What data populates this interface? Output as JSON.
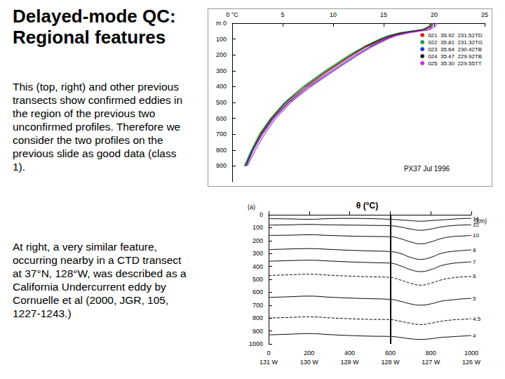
{
  "slide": {
    "title": "Delayed-mode QC: Regional features",
    "paragraphs": [
      "This (top, right) and other previous transects show confirmed eddies in the region of the previous two unconfirmed profiles. Therefore we consider the two profiles on the previous slide as good data (class 1).",
      "At right, a very similar feature, occurring nearby in a CTD transect at 37°N, 128°W, was described as a California Undercurrent eddy by Cornuelle et al (2000, JGR, 105, 1227-1243.)"
    ]
  },
  "chart_data": [
    {
      "type": "line",
      "annotation": "PX37 Jul 1996",
      "legend": "top-right",
      "y": [
        0,
        20,
        40,
        60,
        80,
        100,
        150,
        200,
        300,
        400,
        500,
        600,
        700,
        800,
        900
      ],
      "xlim": [
        0,
        25
      ],
      "xticks": [
        {
          "value": 0,
          "label": "0 °C"
        },
        5,
        10,
        15,
        20,
        25
      ],
      "ylim": [
        0,
        1000
      ],
      "yticks": [
        {
          "value": 0,
          "label": "m 0"
        },
        100,
        200,
        300,
        400,
        500,
        600,
        700,
        800,
        900
      ],
      "grid": false,
      "series": [
        {
          "name": "021  35.92  231.52TD",
          "color": "#e02020",
          "values": [
            19.8,
            19.7,
            19.2,
            17.0,
            15.8,
            15.0,
            13.3,
            12.0,
            9.6,
            7.4,
            5.5,
            4.0,
            2.9,
            2.0,
            1.3
          ]
        },
        {
          "name": "022  35.81  231.32TG",
          "color": "#20a040",
          "values": [
            19.6,
            19.5,
            18.8,
            16.6,
            15.4,
            14.6,
            13.0,
            11.6,
            9.2,
            7.0,
            5.2,
            3.8,
            2.7,
            1.9,
            1.2
          ]
        },
        {
          "name": "023  35.64  230.42TB",
          "color": "#2040d0",
          "values": [
            19.9,
            19.8,
            19.5,
            17.4,
            16.0,
            15.2,
            13.6,
            12.3,
            9.9,
            7.6,
            5.6,
            4.1,
            3.0,
            2.1,
            1.4
          ]
        },
        {
          "name": "024  35.47  229.92TB",
          "color": "#202020",
          "values": [
            19.7,
            19.6,
            19.0,
            16.8,
            15.6,
            14.8,
            13.1,
            11.8,
            9.4,
            7.2,
            5.3,
            3.9,
            2.8,
            2.0,
            1.3
          ]
        },
        {
          "name": "025  35.30  229.55TT",
          "color": "#d030d0",
          "values": [
            20.3,
            20.1,
            19.6,
            17.6,
            16.2,
            15.4,
            13.8,
            12.5,
            10.1,
            7.8,
            5.8,
            4.3,
            3.2,
            2.3,
            1.5
          ]
        }
      ]
    },
    {
      "type": "line",
      "title": "θ (°C)",
      "panel": "(a)",
      "x_label": "(km)",
      "x": [
        0,
        100,
        200,
        300,
        400,
        500,
        600,
        650,
        700,
        750,
        800,
        850,
        900,
        950,
        1000
      ],
      "xlim": [
        0,
        1000
      ],
      "xticks": [
        0,
        200,
        400,
        600,
        800,
        1000
      ],
      "x2lim": [
        0,
        1000
      ],
      "x2ticks": [
        {
          "value": 0,
          "label": "131 W"
        },
        {
          "value": 200,
          "label": "130 W"
        },
        {
          "value": 400,
          "label": "129 W"
        },
        {
          "value": 600,
          "label": "128 W"
        },
        {
          "value": 800,
          "label": "127 W"
        },
        {
          "value": 1000,
          "label": "126 W"
        }
      ],
      "ylim": [
        0,
        1000
      ],
      "yticks": [
        0,
        100,
        200,
        300,
        400,
        500,
        600,
        700,
        800,
        900,
        1000
      ],
      "vlines": [
        600
      ],
      "grid": false,
      "series": [
        {
          "label": "14",
          "color": "#000000",
          "line_style": "solid",
          "values": [
            30,
            32,
            35,
            30,
            28,
            30,
            35,
            40,
            45,
            50,
            45,
            40,
            35,
            30,
            28
          ]
        },
        {
          "label": "12",
          "color": "#000000",
          "line_style": "solid",
          "values": [
            80,
            78,
            75,
            78,
            80,
            82,
            85,
            95,
            110,
            120,
            110,
            95,
            85,
            80,
            78
          ]
        },
        {
          "label": "10",
          "color": "#000000",
          "line_style": "solid",
          "values": [
            160,
            158,
            155,
            160,
            165,
            168,
            170,
            185,
            210,
            225,
            210,
            185,
            170,
            165,
            160
          ]
        },
        {
          "label": "8",
          "color": "#000000",
          "line_style": "solid",
          "values": [
            270,
            265,
            262,
            268,
            275,
            280,
            285,
            300,
            330,
            345,
            330,
            300,
            285,
            278,
            272
          ]
        },
        {
          "label": "7",
          "color": "#000000",
          "line_style": "solid",
          "values": [
            360,
            355,
            352,
            358,
            365,
            370,
            375,
            395,
            425,
            440,
            425,
            395,
            378,
            370,
            365
          ]
        },
        {
          "label": "6",
          "color": "#000000",
          "line_style": "dashed",
          "values": [
            470,
            465,
            460,
            468,
            475,
            480,
            485,
            505,
            530,
            545,
            530,
            505,
            490,
            482,
            478
          ]
        },
        {
          "label": "5",
          "color": "#000000",
          "line_style": "solid",
          "values": [
            640,
            635,
            630,
            638,
            645,
            650,
            655,
            670,
            690,
            700,
            690,
            670,
            660,
            652,
            648
          ]
        },
        {
          "label": "4.5",
          "color": "#000000",
          "line_style": "dashed",
          "values": [
            800,
            795,
            790,
            798,
            805,
            810,
            812,
            825,
            840,
            850,
            840,
            825,
            815,
            810,
            806
          ]
        },
        {
          "label": "4",
          "color": "#000000",
          "line_style": "solid",
          "values": [
            930,
            925,
            920,
            928,
            935,
            940,
            942,
            950,
            960,
            965,
            960,
            950,
            945,
            940,
            936
          ]
        }
      ]
    }
  ]
}
